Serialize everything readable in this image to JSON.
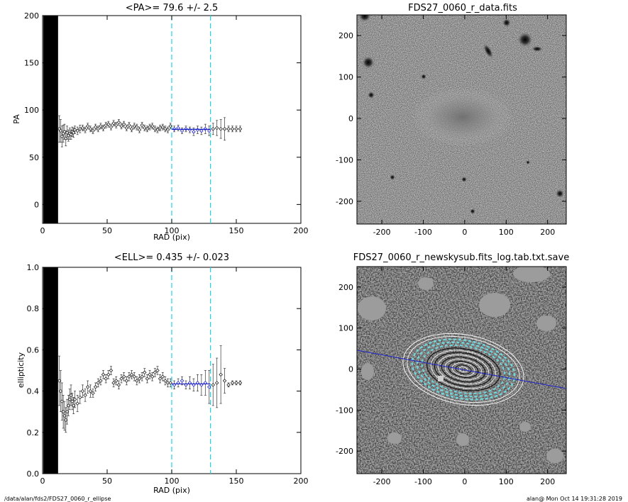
{
  "chart_data": [
    {
      "type": "scatter",
      "title": "<PA>=  79.6 +/-   2.5",
      "xlabel": "RAD (pix)",
      "ylabel": "PA",
      "xlim": [
        0,
        200
      ],
      "ylim": [
        -20,
        200
      ],
      "xticks": [
        "0",
        "50",
        "100",
        "150",
        "200"
      ],
      "yticks": [
        "0",
        "50",
        "100",
        "150",
        "200"
      ],
      "vlines": [
        100,
        130
      ],
      "fit": {
        "x": [
          100,
          130
        ],
        "y": 79.6
      },
      "points": {
        "x": [
          13,
          14,
          15,
          16,
          17,
          18,
          19,
          20,
          21,
          22,
          23,
          24,
          25,
          27,
          29,
          31,
          33,
          35,
          37,
          39,
          41,
          43,
          45,
          47,
          49,
          51,
          53,
          55,
          57,
          59,
          61,
          63,
          65,
          67,
          69,
          71,
          73,
          75,
          77,
          79,
          81,
          83,
          85,
          87,
          89,
          91,
          93,
          95,
          97,
          99,
          102,
          105,
          108,
          111,
          114,
          117,
          120,
          123,
          126,
          129,
          132,
          135,
          138,
          141,
          144,
          147,
          150,
          153
        ],
        "y": [
          80,
          78,
          72,
          75,
          77,
          70,
          76,
          73,
          75,
          74,
          77,
          76,
          79,
          78,
          80,
          81,
          79,
          83,
          80,
          78,
          82,
          80,
          83,
          81,
          84,
          85,
          82,
          86,
          84,
          87,
          83,
          85,
          81,
          84,
          80,
          83,
          82,
          79,
          84,
          81,
          80,
          82,
          83,
          80,
          79,
          81,
          82,
          80,
          79,
          83,
          80,
          81,
          78,
          80,
          79,
          77,
          79,
          78,
          80,
          78,
          80,
          81,
          80,
          80,
          80,
          80,
          80,
          80
        ],
        "err": [
          14,
          12,
          11,
          9,
          8,
          8,
          7,
          6,
          6,
          5,
          5,
          5,
          4,
          4,
          4,
          3,
          3,
          3,
          3,
          3,
          3,
          3,
          3,
          3,
          3,
          3,
          3,
          3,
          3,
          3,
          3,
          3,
          3,
          3,
          3,
          3,
          3,
          3,
          3,
          3,
          3,
          3,
          3,
          3,
          3,
          3,
          3,
          3,
          3,
          3,
          3,
          3,
          3,
          3,
          3,
          4,
          4,
          4,
          5,
          5,
          6,
          8,
          10,
          12,
          3,
          3,
          3,
          3
        ]
      }
    },
    {
      "type": "scatter",
      "title": "<ELL>= 0.435 +/-  0.023",
      "xlabel": "RAD (pix)",
      "ylabel": "ellipticity",
      "xlim": [
        0,
        200
      ],
      "ylim": [
        0,
        1
      ],
      "xticks": [
        "0",
        "50",
        "100",
        "150",
        "200"
      ],
      "yticks": [
        "0.0",
        "0.2",
        "0.4",
        "0.6",
        "0.8",
        "1.0"
      ],
      "vlines": [
        100,
        130
      ],
      "fit": {
        "x": [
          100,
          130
        ],
        "y": 0.435
      },
      "points": {
        "x": [
          13,
          14,
          15,
          16,
          17,
          18,
          19,
          20,
          21,
          22,
          23,
          24,
          25,
          27,
          29,
          31,
          33,
          35,
          37,
          39,
          41,
          43,
          45,
          47,
          49,
          51,
          53,
          55,
          57,
          59,
          61,
          63,
          65,
          67,
          69,
          71,
          73,
          75,
          77,
          79,
          81,
          83,
          85,
          87,
          89,
          91,
          93,
          95,
          97,
          99,
          102,
          105,
          108,
          111,
          114,
          117,
          120,
          123,
          126,
          129,
          132,
          135,
          138,
          141,
          144,
          147,
          150,
          153
        ],
        "y": [
          0.45,
          0.4,
          0.35,
          0.3,
          0.28,
          0.26,
          0.3,
          0.33,
          0.36,
          0.38,
          0.35,
          0.33,
          0.36,
          0.34,
          0.37,
          0.4,
          0.38,
          0.42,
          0.4,
          0.39,
          0.42,
          0.44,
          0.45,
          0.48,
          0.46,
          0.48,
          0.5,
          0.44,
          0.45,
          0.43,
          0.46,
          0.47,
          0.45,
          0.47,
          0.48,
          0.47,
          0.45,
          0.46,
          0.47,
          0.49,
          0.46,
          0.48,
          0.47,
          0.49,
          0.5,
          0.46,
          0.47,
          0.45,
          0.44,
          0.44,
          0.43,
          0.44,
          0.45,
          0.43,
          0.44,
          0.43,
          0.44,
          0.43,
          0.44,
          0.42,
          0.43,
          0.44,
          0.48,
          0.45,
          0.43,
          0.44,
          0.44,
          0.44
        ],
        "err": [
          0.12,
          0.1,
          0.09,
          0.08,
          0.07,
          0.06,
          0.06,
          0.05,
          0.05,
          0.05,
          0.04,
          0.04,
          0.04,
          0.04,
          0.03,
          0.03,
          0.03,
          0.03,
          0.03,
          0.02,
          0.02,
          0.02,
          0.02,
          0.02,
          0.02,
          0.02,
          0.02,
          0.02,
          0.02,
          0.02,
          0.02,
          0.02,
          0.02,
          0.02,
          0.02,
          0.02,
          0.02,
          0.02,
          0.02,
          0.02,
          0.02,
          0.02,
          0.02,
          0.02,
          0.02,
          0.02,
          0.02,
          0.02,
          0.02,
          0.02,
          0.02,
          0.02,
          0.02,
          0.02,
          0.03,
          0.03,
          0.04,
          0.05,
          0.06,
          0.08,
          0.1,
          0.12,
          0.14,
          0.06,
          0.01,
          0.01,
          0.01,
          0.01
        ]
      }
    },
    {
      "type": "heatmap",
      "title": "FDS27_0060_r_data.fits",
      "xlim": [
        -260,
        245
      ],
      "ylim": [
        -255,
        250
      ],
      "xticks": [
        "-200",
        "-100",
        "0",
        "100",
        "200"
      ],
      "yticks": [
        "-200",
        "-100",
        "0",
        "100",
        "200"
      ]
    },
    {
      "type": "heatmap",
      "title": "FDS27_0060_r_newskysub.fits_log.tab.txt.save",
      "xlim": [
        -260,
        245
      ],
      "ylim": [
        -255,
        250
      ],
      "xticks": [
        "-200",
        "-100",
        "0",
        "100",
        "200"
      ],
      "yticks": [
        "-200",
        "-100",
        "0",
        "100",
        "200"
      ]
    }
  ],
  "footer": {
    "left": "/data/alan/fds2/FDS27_0060_r_ellipse",
    "right": "alan@  Mon Oct 14 19:31:28 2019"
  },
  "colors": {
    "vline": "#22d3e6",
    "fit": "#1a20c8",
    "axis": "#000000"
  }
}
